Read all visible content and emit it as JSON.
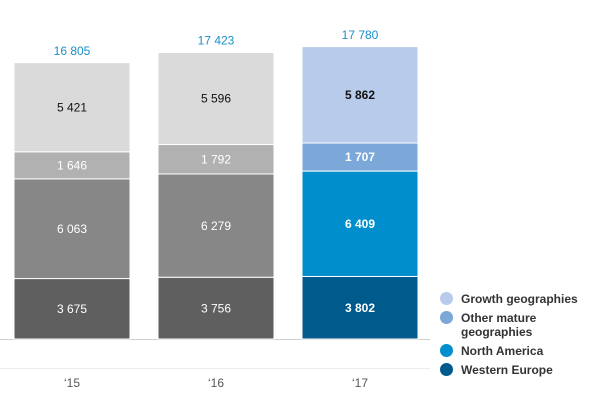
{
  "chart_data": {
    "type": "stacked-bar",
    "categories": [
      "‘15",
      "‘16",
      "‘17"
    ],
    "highlight_index": 2,
    "ylim": [
      0,
      18000
    ],
    "totals": {
      "values": [
        16805,
        17423,
        17780
      ],
      "value_labels": [
        "16 805",
        "17 423",
        "17 780"
      ],
      "color": "#1a8fc7"
    },
    "series": [
      {
        "name": "Western Europe",
        "color": "#005a8c",
        "point_colors": [
          "#5f5f5f",
          "#5f5f5f",
          "#005a8c"
        ],
        "values": [
          3675,
          3756,
          3802
        ],
        "value_labels": [
          "3 675",
          "3 756",
          "3 802"
        ]
      },
      {
        "name": "North America",
        "color": "#008fcc",
        "point_colors": [
          "#878787",
          "#878787",
          "#008fcc"
        ],
        "values": [
          6063,
          6279,
          6409
        ],
        "value_labels": [
          "6 063",
          "6 279",
          "6 409"
        ]
      },
      {
        "name": "Other mature geographies",
        "color": "#7ba7d9",
        "point_colors": [
          "#b1b1b1",
          "#b1b1b1",
          "#7ba7d9"
        ],
        "values": [
          1646,
          1792,
          1707
        ],
        "value_labels": [
          "1 646",
          "1 792",
          "1 707"
        ]
      },
      {
        "name": "Growth geographies",
        "color": "#b8cbea",
        "point_colors": [
          "#dadada",
          "#dadada",
          "#b8cbea"
        ],
        "values": [
          5421,
          5596,
          5862
        ],
        "value_labels": [
          "5 421",
          "5 596",
          "5 862"
        ]
      }
    ]
  }
}
